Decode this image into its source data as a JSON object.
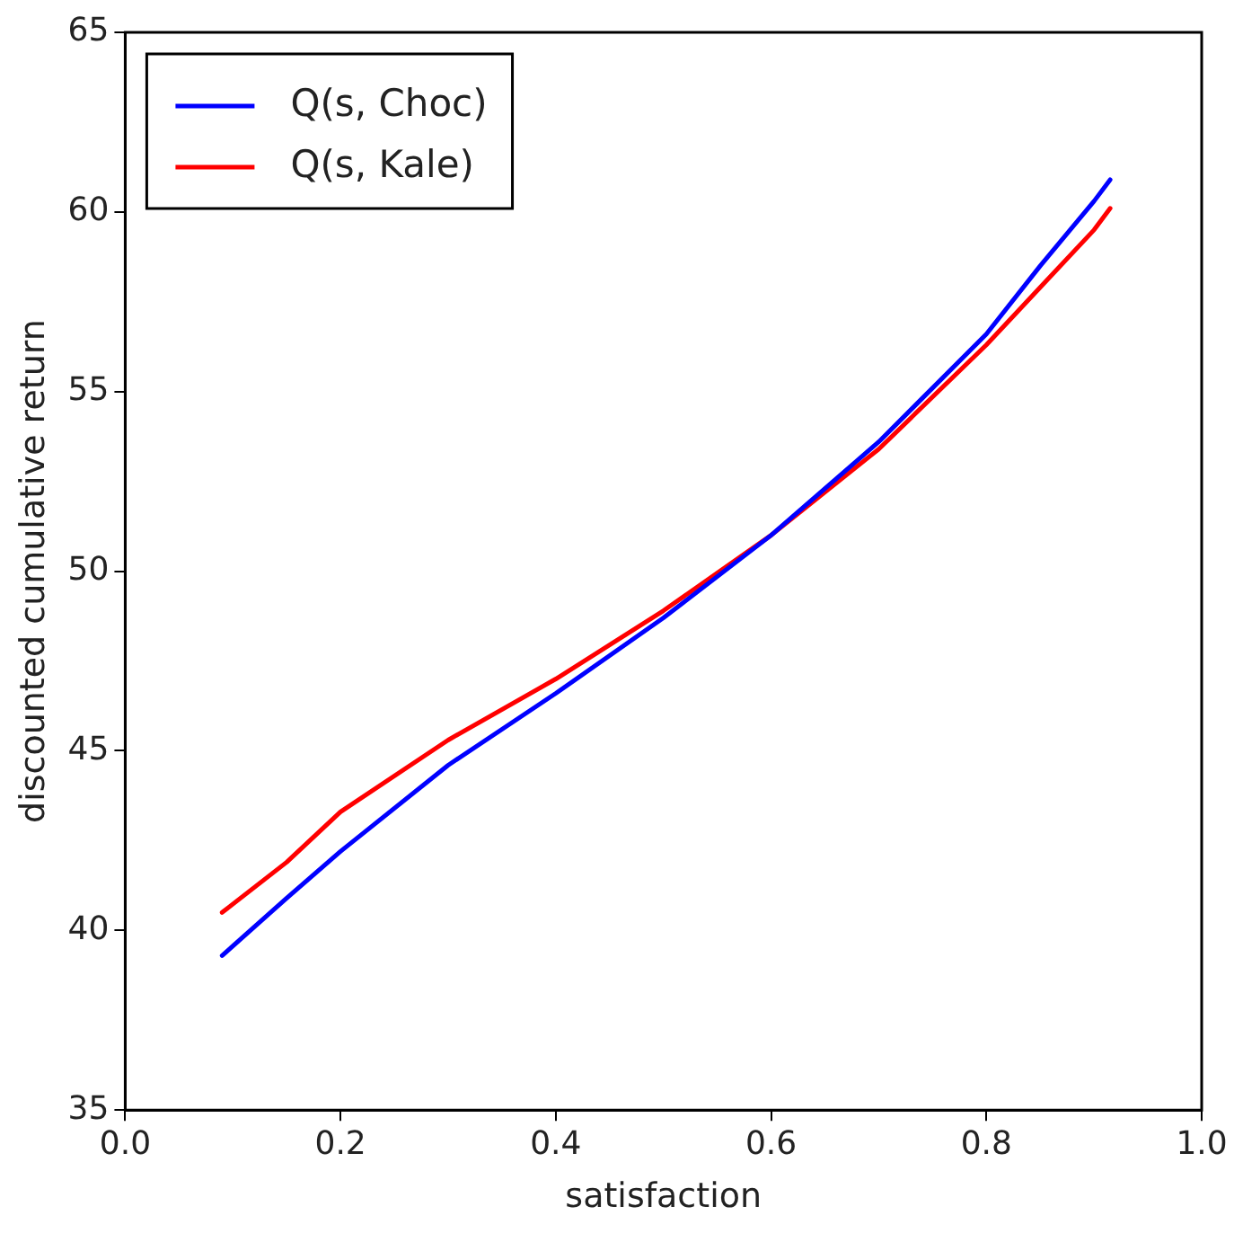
{
  "chart_data": {
    "type": "line",
    "xlabel": "satisfaction",
    "ylabel": "discounted cumulative return",
    "xlim": [
      0,
      1
    ],
    "xticks": [
      {
        "value": 0,
        "label": "0.0"
      },
      {
        "value": 0.2,
        "label": "0.2"
      },
      {
        "value": 0.4,
        "label": "0.4"
      },
      {
        "value": 0.6,
        "label": "0.6"
      },
      {
        "value": 0.8,
        "label": "0.8"
      },
      {
        "value": 1,
        "label": "1.0"
      }
    ],
    "ylim": [
      35,
      65
    ],
    "yticks": [
      35,
      40,
      45,
      50,
      55,
      60,
      65
    ],
    "x": [
      0.09,
      0.15,
      0.2,
      0.3,
      0.4,
      0.5,
      0.6,
      0.7,
      0.8,
      0.85,
      0.9,
      0.915
    ],
    "series": [
      {
        "name": "Q(s, Choc)",
        "color": "#0000ff",
        "values": [
          39.3,
          40.9,
          42.2,
          44.6,
          46.6,
          48.7,
          51.0,
          53.6,
          56.6,
          58.5,
          60.3,
          60.9
        ]
      },
      {
        "name": "Q(s, Kale)",
        "color": "#ff0000",
        "values": [
          40.5,
          41.9,
          43.3,
          45.3,
          47.0,
          48.9,
          51.0,
          53.4,
          56.3,
          57.9,
          59.5,
          60.1
        ]
      }
    ],
    "grid": false,
    "legend": "top left",
    "marker": "none",
    "line_style": "solid"
  }
}
